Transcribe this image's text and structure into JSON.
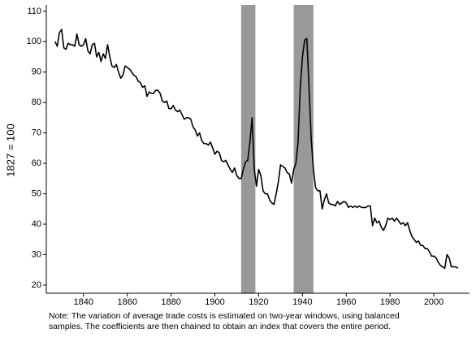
{
  "chart_data": {
    "type": "line",
    "y_label": "1827 = 100",
    "note": [
      "Note: The variation of average trade costs is estimated on two-year windows, using balanced",
      "samples. The coefficients are then chained to obtain an index that covers the entire period."
    ],
    "x": [
      1827,
      1828,
      1829,
      1830,
      1831,
      1832,
      1833,
      1834,
      1835,
      1836,
      1837,
      1838,
      1839,
      1840,
      1841,
      1842,
      1843,
      1844,
      1845,
      1846,
      1847,
      1848,
      1849,
      1850,
      1851,
      1852,
      1853,
      1854,
      1855,
      1856,
      1857,
      1858,
      1859,
      1860,
      1861,
      1862,
      1863,
      1864,
      1865,
      1866,
      1867,
      1868,
      1869,
      1870,
      1871,
      1872,
      1873,
      1874,
      1875,
      1876,
      1877,
      1878,
      1879,
      1880,
      1881,
      1882,
      1883,
      1884,
      1885,
      1886,
      1887,
      1888,
      1889,
      1890,
      1891,
      1892,
      1893,
      1894,
      1895,
      1896,
      1897,
      1898,
      1899,
      1900,
      1901,
      1902,
      1903,
      1904,
      1905,
      1906,
      1907,
      1908,
      1909,
      1910,
      1911,
      1912,
      1913,
      1914,
      1915,
      1916,
      1917,
      1918,
      1919,
      1920,
      1921,
      1922,
      1923,
      1924,
      1925,
      1926,
      1927,
      1928,
      1929,
      1930,
      1931,
      1932,
      1933,
      1934,
      1935,
      1936,
      1937,
      1938,
      1939,
      1940,
      1941,
      1942,
      1943,
      1944,
      1945,
      1946,
      1947,
      1948,
      1949,
      1950,
      1951,
      1952,
      1953,
      1954,
      1955,
      1956,
      1957,
      1958,
      1959,
      1960,
      1961,
      1962,
      1963,
      1964,
      1965,
      1966,
      1967,
      1968,
      1969,
      1970,
      1971,
      1972,
      1973,
      1974,
      1975,
      1976,
      1977,
      1978,
      1979,
      1980,
      1981,
      1982,
      1983,
      1984,
      1985,
      1986,
      1987,
      1988,
      1989,
      1990,
      1991,
      1992,
      1993,
      1994,
      1995,
      1996,
      1997,
      1998,
      1999,
      2000,
      2001,
      2002,
      2003,
      2004,
      2005,
      2006,
      2007,
      2008,
      2009,
      2010,
      2011
    ],
    "values": [
      100,
      98.5,
      103,
      104,
      98,
      97.5,
      99.5,
      99,
      99,
      98.5,
      102.5,
      99,
      98.5,
      99,
      101,
      97,
      96,
      99,
      99.5,
      95,
      96.5,
      93.5,
      96,
      94.5,
      99,
      95,
      92,
      91.5,
      92.5,
      90,
      88,
      89,
      92,
      91.5,
      91,
      90,
      89,
      88.5,
      87,
      86.5,
      85,
      85.5,
      82,
      83.5,
      83,
      83,
      84,
      84,
      83,
      80.5,
      80,
      80.5,
      78,
      78,
      79,
      77.5,
      77,
      77.5,
      76,
      74.5,
      75,
      75,
      74.5,
      72,
      71,
      69,
      70,
      67.5,
      66.5,
      66.5,
      66,
      67,
      65,
      63,
      64,
      63.5,
      61,
      60.5,
      61,
      59.5,
      58,
      57,
      58.5,
      56,
      55,
      55,
      58,
      60.5,
      61,
      67,
      75,
      58,
      52.5,
      58,
      56,
      51,
      50,
      50,
      48,
      47,
      46.5,
      50,
      54,
      59.5,
      59,
      58.5,
      57,
      56.5,
      53.5,
      58,
      60,
      67,
      85,
      95,
      100.5,
      101,
      85,
      68,
      58,
      52,
      51,
      51,
      45,
      48,
      50,
      47,
      46.5,
      46.5,
      46,
      47.5,
      46.5,
      47,
      47.5,
      47,
      45.5,
      46,
      45.5,
      46,
      45.5,
      46,
      45.5,
      45.5,
      45.5,
      46,
      46,
      39.5,
      42,
      40.5,
      41,
      39,
      38,
      39.5,
      42,
      41.5,
      42,
      41,
      42,
      41,
      40,
      40.5,
      39.5,
      40.5,
      38,
      36,
      35,
      34,
      34.5,
      33,
      33,
      32,
      32,
      31,
      29.5,
      29.5,
      29,
      27.5,
      26.5,
      26,
      25.5,
      30,
      29,
      26,
      26,
      26,
      25.5
    ],
    "color": "#000000",
    "shaded_periods": [
      [
        1912,
        1918.5
      ],
      [
        1936,
        1945
      ]
    ],
    "shade_color": "#999999",
    "xlim": [
      1823,
      2016.3
    ],
    "ylim": [
      17.3,
      112.1
    ],
    "xticks": [
      1840,
      1860,
      1880,
      1900,
      1920,
      1940,
      1960,
      1980,
      2000
    ],
    "yticks": [
      20,
      30,
      40,
      50,
      60,
      70,
      80,
      90,
      100,
      110
    ]
  }
}
